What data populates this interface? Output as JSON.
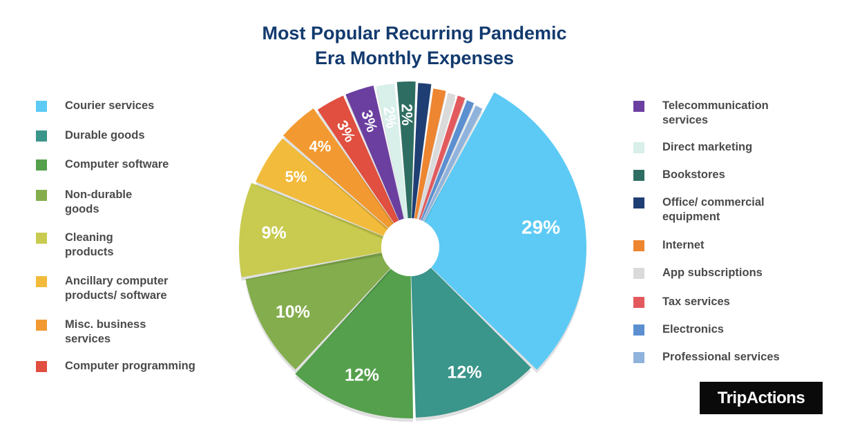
{
  "chart_data": {
    "type": "pie",
    "title": "Most Popular Recurring Pandemic\nEra Monthly Expenses",
    "slices": [
      {
        "label": "Courier services",
        "value": 29,
        "display": "29%",
        "color": "#5ccaf5"
      },
      {
        "label": "Durable goods",
        "value": 12,
        "display": "12%",
        "color": "#3a958a"
      },
      {
        "label": "Computer software",
        "value": 12,
        "display": "12%",
        "color": "#54a04c"
      },
      {
        "label": "Non-durable goods",
        "value": 10,
        "display": "10%",
        "color": "#84ad4d"
      },
      {
        "label": "Cleaning products",
        "value": 9,
        "display": "9%",
        "color": "#c8cb4f"
      },
      {
        "label": "Ancillary computer products/ software",
        "value": 5,
        "display": "5%",
        "color": "#f2bb3c"
      },
      {
        "label": "Misc. business services",
        "value": 4,
        "display": "4%",
        "color": "#f29a31"
      },
      {
        "label": "Computer programming",
        "value": 3,
        "display": "3%",
        "color": "#e04f3f"
      },
      {
        "label": "Telecommunication services",
        "value": 3,
        "display": "3%",
        "color": "#6b3fa0"
      },
      {
        "label": "Direct marketing",
        "value": 2,
        "display": "2%",
        "color": "#d8efea"
      },
      {
        "label": "Bookstores",
        "value": 2,
        "display": "2%",
        "color": "#2e6e62"
      },
      {
        "label": "Office/ commercial equipment",
        "value": 1.5,
        "display": "",
        "color": "#1f3e73"
      },
      {
        "label": "Internet",
        "value": 1.5,
        "display": "",
        "color": "#ee8530"
      },
      {
        "label": "App subscriptions",
        "value": 1,
        "display": "",
        "color": "#dadada"
      },
      {
        "label": "Tax services",
        "value": 1,
        "display": "",
        "color": "#e25a5e"
      },
      {
        "label": "Electronics",
        "value": 1,
        "display": "",
        "color": "#5b8fd0"
      },
      {
        "label": "Professional services",
        "value": 1,
        "display": "",
        "color": "#8fb3dc"
      }
    ]
  },
  "legend_left": [
    {
      "label": "Courier services",
      "color": "#5ccaf5"
    },
    {
      "label": "Durable goods",
      "color": "#3a958a"
    },
    {
      "label": "Computer software",
      "color": "#54a04c"
    },
    {
      "label": "Non-durable\ngoods",
      "color": "#84ad4d"
    },
    {
      "label": "Cleaning\nproducts",
      "color": "#c8cb4f"
    },
    {
      "label": "Ancillary computer\nproducts/ software",
      "color": "#f2bb3c"
    },
    {
      "label": "Misc. business\nservices",
      "color": "#f29a31"
    },
    {
      "label": "Computer programming",
      "color": "#e04f3f"
    }
  ],
  "legend_right": [
    {
      "label": "Telecommunication\nservices",
      "color": "#6b3fa0"
    },
    {
      "label": "Direct marketing",
      "color": "#d8efea"
    },
    {
      "label": "Bookstores",
      "color": "#2e6e62"
    },
    {
      "label": "Office/ commercial\nequipment",
      "color": "#1f3e73"
    },
    {
      "label": "Internet",
      "color": "#ee8530"
    },
    {
      "label": "App subscriptions",
      "color": "#dadada"
    },
    {
      "label": "Tax services",
      "color": "#e25a5e"
    },
    {
      "label": "Electronics",
      "color": "#5b8fd0"
    },
    {
      "label": "Professional services",
      "color": "#8fb3dc"
    }
  ],
  "brand": {
    "logo_text": "TripActions"
  }
}
